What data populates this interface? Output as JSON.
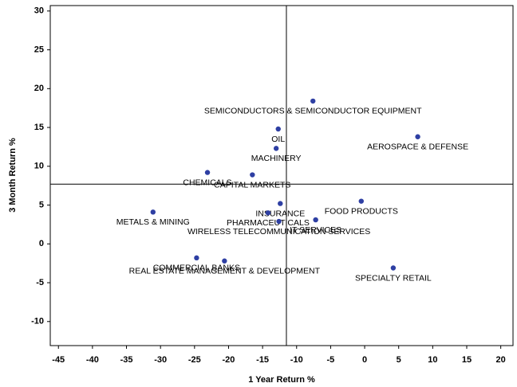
{
  "chart_data": {
    "type": "scatter",
    "x_label": "1 Year Return %",
    "y_label": "3 Month Return %",
    "labels": [
      "SEMICONDUCTORS & SEMICONDUCTOR EQUIPMENT",
      "OIL",
      "AEROSPACE & DEFENSE",
      "MACHINERY",
      "CHEMICALS",
      "CAPITAL MARKETS",
      "INSURANCE",
      "FOOD PRODUCTS",
      "METALS & MINING",
      "PHARMACEUTICALS",
      "WIRELESS TELECOMMUNICATION SERVICES",
      "IT SERVICES",
      "COMMERCIAL BANKS",
      "REAL ESTATE MANAGEMENT & DEVELOPMENT",
      "SPECIALTY RETAIL"
    ],
    "x": [
      -7.6,
      -12.7,
      7.8,
      -13.0,
      -23.1,
      -16.5,
      -12.4,
      -0.5,
      -31.1,
      -14.2,
      -12.6,
      -7.2,
      -24.7,
      -20.6,
      4.2
    ],
    "y": [
      18.4,
      14.8,
      13.8,
      12.3,
      9.2,
      8.9,
      5.2,
      5.5,
      4.1,
      4.0,
      2.9,
      3.1,
      -1.8,
      -2.2,
      -3.1
    ],
    "color": "#2e3fa3",
    "xlim": [
      -46.2,
      21.8
    ],
    "xticks": [
      -45,
      -40,
      -35,
      -30,
      -25,
      -20,
      -15,
      -10,
      -5,
      0,
      5,
      10,
      15,
      20
    ],
    "ylim": [
      -13.1,
      30.7
    ],
    "yticks": [
      -10,
      -5,
      0,
      5,
      10,
      15,
      20,
      25,
      30
    ],
    "reference_lines": {
      "x": -11.5,
      "y": 7.7
    },
    "grid": false
  }
}
